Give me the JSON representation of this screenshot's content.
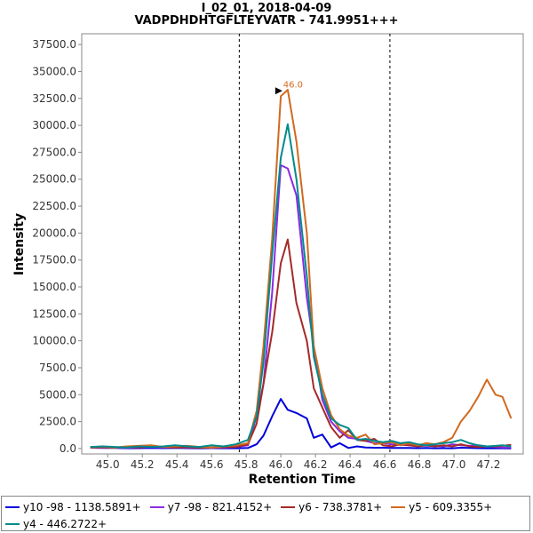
{
  "chart_data": {
    "type": "line",
    "title": "I_02_01, 2018-04-09",
    "subtitle": "VADPDHDHTGFLTEYVATR - 741.9951+++",
    "xlabel": "Retention Time",
    "ylabel": "Intensity",
    "xlim": [
      44.85,
      47.4
    ],
    "ylim": [
      -500,
      38500
    ],
    "x_ticks": [
      "45.0",
      "45.2",
      "45.4",
      "45.6",
      "45.8",
      "46.0",
      "46.2",
      "46.4",
      "46.6",
      "46.8",
      "47.0",
      "47.2"
    ],
    "y_ticks": [
      "0.0",
      "2500.0",
      "5000.0",
      "7500.0",
      "10000.0",
      "12500.0",
      "15000.0",
      "17500.0",
      "20000.0",
      "22500.0",
      "25000.0",
      "27500.0",
      "30000.0",
      "32500.0",
      "35000.0",
      "37500.0"
    ],
    "boundaries": [
      45.76,
      46.63
    ],
    "peak_annotation": {
      "label": "46.0",
      "x": 46.05,
      "y": 33200
    },
    "grid": false,
    "legend_position": "bottom",
    "series": [
      {
        "name": "y10 -98 - 1138.5891+",
        "color": "#0000dd",
        "points": [
          [
            44.9,
            80
          ],
          [
            44.97,
            60
          ],
          [
            45.04,
            50
          ],
          [
            45.11,
            30
          ],
          [
            45.18,
            40
          ],
          [
            45.25,
            60
          ],
          [
            45.32,
            40
          ],
          [
            45.39,
            60
          ],
          [
            45.46,
            40
          ],
          [
            45.53,
            30
          ],
          [
            45.6,
            40
          ],
          [
            45.67,
            30
          ],
          [
            45.74,
            30
          ],
          [
            45.81,
            50
          ],
          [
            45.86,
            400
          ],
          [
            45.9,
            1200
          ],
          [
            45.95,
            3000
          ],
          [
            46.0,
            4600
          ],
          [
            46.04,
            3600
          ],
          [
            46.09,
            3300
          ],
          [
            46.15,
            2800
          ],
          [
            46.19,
            1000
          ],
          [
            46.24,
            1300
          ],
          [
            46.29,
            100
          ],
          [
            46.34,
            500
          ],
          [
            46.39,
            50
          ],
          [
            46.44,
            200
          ],
          [
            46.49,
            100
          ],
          [
            46.54,
            80
          ],
          [
            46.59,
            80
          ],
          [
            46.64,
            60
          ],
          [
            46.69,
            50
          ],
          [
            46.74,
            60
          ],
          [
            46.79,
            40
          ],
          [
            46.84,
            50
          ],
          [
            46.89,
            30
          ],
          [
            46.94,
            40
          ],
          [
            46.99,
            30
          ],
          [
            47.04,
            80
          ],
          [
            47.09,
            50
          ],
          [
            47.14,
            40
          ],
          [
            47.19,
            30
          ],
          [
            47.24,
            40
          ],
          [
            47.28,
            30
          ],
          [
            47.33,
            20
          ]
        ]
      },
      {
        "name": "y7 -98 - 821.4152+",
        "color": "#8a2be2",
        "points": [
          [
            44.9,
            100
          ],
          [
            44.97,
            80
          ],
          [
            45.04,
            100
          ],
          [
            45.11,
            60
          ],
          [
            45.18,
            120
          ],
          [
            45.25,
            150
          ],
          [
            45.32,
            100
          ],
          [
            45.39,
            120
          ],
          [
            45.46,
            80
          ],
          [
            45.53,
            100
          ],
          [
            45.6,
            60
          ],
          [
            45.67,
            80
          ],
          [
            45.74,
            150
          ],
          [
            45.81,
            300
          ],
          [
            45.86,
            3000
          ],
          [
            45.9,
            6000
          ],
          [
            45.95,
            14500
          ],
          [
            46.0,
            26300
          ],
          [
            46.04,
            26000
          ],
          [
            46.09,
            23500
          ],
          [
            46.15,
            14000
          ],
          [
            46.19,
            9500
          ],
          [
            46.24,
            4500
          ],
          [
            46.29,
            2500
          ],
          [
            46.34,
            1600
          ],
          [
            46.39,
            1000
          ],
          [
            46.44,
            900
          ],
          [
            46.49,
            700
          ],
          [
            46.54,
            500
          ],
          [
            46.59,
            500
          ],
          [
            46.64,
            400
          ],
          [
            46.69,
            350
          ],
          [
            46.74,
            300
          ],
          [
            46.79,
            300
          ],
          [
            46.84,
            250
          ],
          [
            46.89,
            250
          ],
          [
            46.94,
            200
          ],
          [
            46.99,
            400
          ],
          [
            47.04,
            300
          ],
          [
            47.09,
            250
          ],
          [
            47.14,
            300
          ],
          [
            47.19,
            200
          ],
          [
            47.24,
            150
          ],
          [
            47.28,
            100
          ],
          [
            47.33,
            100
          ]
        ]
      },
      {
        "name": "y6 - 738.3781+",
        "color": "#a52a2a",
        "points": [
          [
            44.9,
            100
          ],
          [
            44.97,
            120
          ],
          [
            45.04,
            80
          ],
          [
            45.11,
            150
          ],
          [
            45.18,
            100
          ],
          [
            45.25,
            200
          ],
          [
            45.32,
            150
          ],
          [
            45.39,
            100
          ],
          [
            45.46,
            120
          ],
          [
            45.53,
            80
          ],
          [
            45.6,
            100
          ],
          [
            45.67,
            120
          ],
          [
            45.74,
            150
          ],
          [
            45.81,
            400
          ],
          [
            45.86,
            2300
          ],
          [
            45.9,
            6000
          ],
          [
            45.95,
            10800
          ],
          [
            46.0,
            17200
          ],
          [
            46.04,
            19400
          ],
          [
            46.09,
            13500
          ],
          [
            46.15,
            10000
          ],
          [
            46.19,
            5600
          ],
          [
            46.24,
            3800
          ],
          [
            46.29,
            2000
          ],
          [
            46.34,
            1000
          ],
          [
            46.39,
            1700
          ],
          [
            46.44,
            800
          ],
          [
            46.49,
            700
          ],
          [
            46.54,
            900
          ],
          [
            46.59,
            300
          ],
          [
            46.64,
            200
          ],
          [
            46.69,
            400
          ],
          [
            46.74,
            300
          ],
          [
            46.79,
            200
          ],
          [
            46.84,
            300
          ],
          [
            46.89,
            200
          ],
          [
            46.94,
            300
          ],
          [
            46.99,
            200
          ],
          [
            47.04,
            400
          ],
          [
            47.09,
            200
          ],
          [
            47.14,
            150
          ],
          [
            47.19,
            200
          ],
          [
            47.24,
            200
          ],
          [
            47.28,
            250
          ],
          [
            47.33,
            350
          ]
        ]
      },
      {
        "name": "y5 - 609.3355+",
        "color": "#d2691e",
        "points": [
          [
            44.9,
            120
          ],
          [
            44.97,
            180
          ],
          [
            45.04,
            100
          ],
          [
            45.11,
            200
          ],
          [
            45.18,
            250
          ],
          [
            45.25,
            300
          ],
          [
            45.32,
            150
          ],
          [
            45.39,
            200
          ],
          [
            45.46,
            250
          ],
          [
            45.53,
            150
          ],
          [
            45.6,
            100
          ],
          [
            45.67,
            200
          ],
          [
            45.74,
            300
          ],
          [
            45.81,
            500
          ],
          [
            45.86,
            3500
          ],
          [
            45.9,
            9500
          ],
          [
            45.95,
            19500
          ],
          [
            46.0,
            32700
          ],
          [
            46.04,
            33300
          ],
          [
            46.09,
            28500
          ],
          [
            46.15,
            20000
          ],
          [
            46.19,
            9500
          ],
          [
            46.24,
            5600
          ],
          [
            46.29,
            3100
          ],
          [
            46.34,
            1800
          ],
          [
            46.39,
            1200
          ],
          [
            46.44,
            1000
          ],
          [
            46.49,
            1300
          ],
          [
            46.54,
            400
          ],
          [
            46.59,
            500
          ],
          [
            46.64,
            600
          ],
          [
            46.69,
            300
          ],
          [
            46.74,
            500
          ],
          [
            46.79,
            300
          ],
          [
            46.84,
            500
          ],
          [
            46.89,
            400
          ],
          [
            46.94,
            600
          ],
          [
            46.99,
            1000
          ],
          [
            47.04,
            2500
          ],
          [
            47.09,
            3500
          ],
          [
            47.14,
            4800
          ],
          [
            47.19,
            6400
          ],
          [
            47.24,
            5000
          ],
          [
            47.28,
            4800
          ],
          [
            47.33,
            2800
          ]
        ]
      },
      {
        "name": "y4 - 446.2722+",
        "color": "#008b8b",
        "points": [
          [
            44.9,
            150
          ],
          [
            44.97,
            200
          ],
          [
            45.04,
            150
          ],
          [
            45.11,
            100
          ],
          [
            45.18,
            200
          ],
          [
            45.25,
            150
          ],
          [
            45.32,
            200
          ],
          [
            45.39,
            300
          ],
          [
            45.46,
            200
          ],
          [
            45.53,
            150
          ],
          [
            45.6,
            300
          ],
          [
            45.67,
            200
          ],
          [
            45.74,
            400
          ],
          [
            45.81,
            800
          ],
          [
            45.86,
            3000
          ],
          [
            45.9,
            8000
          ],
          [
            45.95,
            18000
          ],
          [
            46.0,
            27000
          ],
          [
            46.04,
            30100
          ],
          [
            46.09,
            25000
          ],
          [
            46.15,
            16000
          ],
          [
            46.19,
            8500
          ],
          [
            46.24,
            5000
          ],
          [
            46.29,
            2800
          ],
          [
            46.34,
            2200
          ],
          [
            46.39,
            1900
          ],
          [
            46.44,
            800
          ],
          [
            46.49,
            900
          ],
          [
            46.54,
            700
          ],
          [
            46.59,
            600
          ],
          [
            46.64,
            700
          ],
          [
            46.69,
            500
          ],
          [
            46.74,
            600
          ],
          [
            46.79,
            400
          ],
          [
            46.84,
            300
          ],
          [
            46.89,
            400
          ],
          [
            46.94,
            500
          ],
          [
            46.99,
            600
          ],
          [
            47.04,
            800
          ],
          [
            47.09,
            500
          ],
          [
            47.14,
            300
          ],
          [
            47.19,
            200
          ],
          [
            47.24,
            250
          ],
          [
            47.28,
            300
          ],
          [
            47.33,
            200
          ]
        ]
      }
    ]
  }
}
